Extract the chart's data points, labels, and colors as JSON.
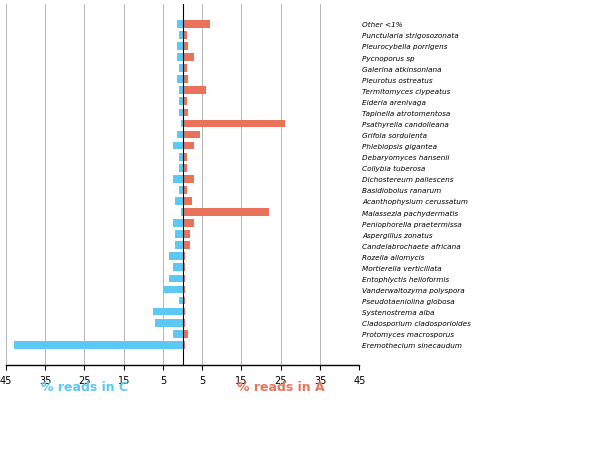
{
  "species": [
    "Eremothecium sinecaudum",
    "Protomyces macrosporus",
    "Cladosporium cladosporioides",
    "Systenostrema alba",
    "Pseudotaeniolina globosa",
    "Vanderwaltozyma polyspora",
    "Entophlyctis helioformis",
    "Mortierella verticillata",
    "Rozella allomycis",
    "Candelabrochaete africana",
    "Aspergillus zonatus",
    "Peniophorella praetermissa",
    "Malassezia pachydermatis",
    "Acanthophysium cerussatum",
    "Basidiobolus ranarum",
    "Dichostereum pallescens",
    "Collybia tuberosa",
    "Debaryomyces hansenii",
    "Phlebiopsis gigantea",
    "Grifola sordulenta",
    "Psathyrella candolleana",
    "Tapinella atrotomentosa",
    "Elderia arenivaga",
    "Termitomyces clypeatus",
    "Pleurotus ostreatus",
    "Galerina atkinsoniana",
    "Pycnoporus sp",
    "Pleurocybella porrigens",
    "Punctularia strigosozonata",
    "Other <1%"
  ],
  "val_C": [
    43.0,
    2.5,
    7.0,
    7.5,
    1.0,
    5.0,
    3.5,
    2.5,
    3.5,
    2.0,
    2.0,
    2.5,
    0.5,
    2.0,
    1.0,
    2.5,
    1.0,
    1.0,
    2.5,
    1.5,
    0.5,
    1.0,
    1.0,
    1.0,
    1.5,
    1.0,
    1.5,
    1.5,
    1.0,
    1.5
  ],
  "val_A": [
    0.5,
    1.5,
    0.5,
    0.5,
    0.5,
    0.5,
    0.5,
    0.5,
    0.5,
    2.0,
    2.0,
    3.0,
    22.0,
    2.5,
    1.0,
    3.0,
    1.0,
    1.0,
    3.0,
    4.5,
    26.0,
    1.5,
    1.0,
    6.0,
    1.5,
    1.0,
    3.0,
    1.5,
    1.0,
    7.0
  ],
  "color_C": "#5BC8F5",
  "color_A": "#E8735A",
  "xlim": 45,
  "xlabel_C": "% reads in C",
  "xlabel_A": "% reads in A",
  "bg_color": "#FFFFFF",
  "grid_color": "#AAAAAA"
}
